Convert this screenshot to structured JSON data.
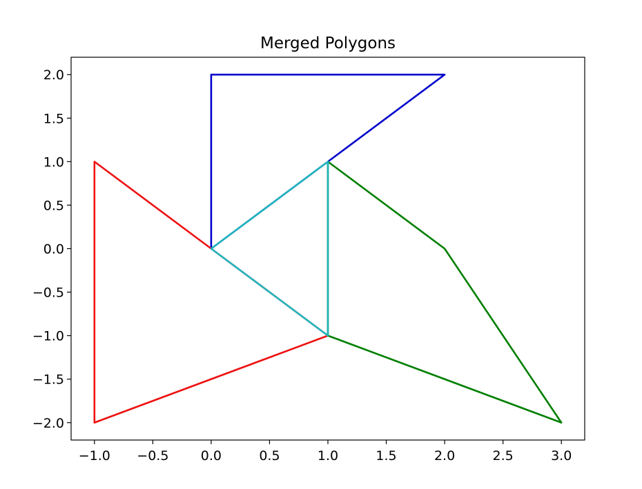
{
  "chart_data": {
    "type": "line",
    "title": "Merged Polygons",
    "xlabel": "",
    "ylabel": "",
    "xlim": [
      -1.2,
      3.2
    ],
    "ylim": [
      -2.2,
      2.2
    ],
    "grid": false,
    "x_ticks": [
      -1.0,
      -0.5,
      0.0,
      0.5,
      1.0,
      1.5,
      2.0,
      2.5,
      3.0
    ],
    "x_tick_labels": [
      "−1.0",
      "−0.5",
      "0.0",
      "0.5",
      "1.0",
      "1.5",
      "2.0",
      "2.5",
      "3.0"
    ],
    "y_ticks": [
      2.0,
      1.5,
      1.0,
      0.5,
      0.0,
      -0.5,
      -1.0,
      -1.5,
      -2.0
    ],
    "y_tick_labels": [
      "2.0",
      "1.5",
      "1.0",
      "0.5",
      "0.0",
      "−0.5",
      "−1.0",
      "−1.5",
      "−2.0"
    ],
    "series": [
      {
        "color": "#0000cc",
        "points": [
          [
            0,
            0
          ],
          [
            0,
            2
          ],
          [
            2,
            2
          ],
          [
            1,
            1
          ],
          [
            0,
            0
          ]
        ]
      },
      {
        "color": "#ee1111",
        "points": [
          [
            -1,
            1
          ],
          [
            -1,
            -2
          ],
          [
            1,
            -1
          ],
          [
            0,
            0
          ],
          [
            -1,
            1
          ]
        ]
      },
      {
        "color": "#007f00",
        "points": [
          [
            1,
            1
          ],
          [
            2,
            0
          ],
          [
            3,
            -2
          ],
          [
            1,
            -1
          ],
          [
            1,
            1
          ]
        ]
      },
      {
        "color": "#1fb5bd",
        "points": [
          [
            0,
            0
          ],
          [
            1,
            1
          ],
          [
            1,
            -1
          ],
          [
            0,
            0
          ]
        ]
      }
    ]
  }
}
